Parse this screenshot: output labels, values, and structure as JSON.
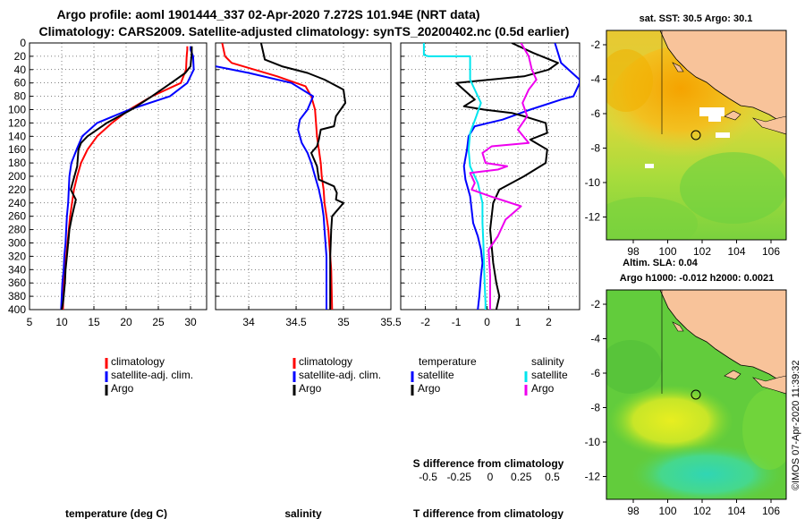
{
  "header": {
    "title_line1": "Argo profile: aoml 1901444_337 02-Apr-2020 7.272S 101.94E (NRT data)",
    "title_line2": "Climatology: CARS2009. Satellite-adjusted climatology: synTS_20200402.nc (0.5d earlier)"
  },
  "colors": {
    "climatology": "#ff0000",
    "satellite": "#0000ff",
    "argo": "#000000",
    "sat_salinity": "#00e5ee",
    "argo_salinity": "#ee00ee"
  },
  "legend_profile": {
    "climatology": "climatology",
    "satellite": "satellite-adj. clim.",
    "argo": "Argo"
  },
  "legend_diff": {
    "temperature": "temperature",
    "salinity": "salinity",
    "satellite": "satellite",
    "argo": "Argo"
  },
  "chart_data": [
    {
      "type": "line",
      "id": "temperature",
      "xlabel": "temperature (deg C)",
      "xlim": [
        5,
        32.5
      ],
      "xticks": [
        5,
        10,
        15,
        20,
        25,
        30
      ],
      "ylim": [
        400,
        0
      ],
      "yticks": [
        0,
        20,
        40,
        60,
        80,
        100,
        120,
        140,
        160,
        180,
        200,
        220,
        240,
        260,
        280,
        300,
        320,
        340,
        360,
        380,
        400
      ],
      "series": [
        {
          "name": "climatology",
          "color": "#ff0000",
          "x": [
            29.5,
            29.5,
            29.4,
            29.3,
            28.5,
            24.0,
            20.5,
            17.8,
            15.5,
            14.0,
            13.0,
            12.4,
            11.9,
            11.6,
            11.3,
            11.1,
            10.9,
            10.7,
            10.5,
            10.3,
            10.2
          ],
          "y": [
            5,
            10,
            20,
            40,
            60,
            80,
            100,
            120,
            140,
            160,
            180,
            200,
            220,
            240,
            260,
            280,
            300,
            320,
            340,
            360,
            400
          ]
        },
        {
          "name": "satellite-adj. clim.",
          "color": "#0000ff",
          "x": [
            30.0,
            30.0,
            30.4,
            30.5,
            29.5,
            26.8,
            20.5,
            15.5,
            13.2,
            12.3,
            11.5,
            11.2,
            11.1,
            11.0,
            10.8,
            10.7,
            10.6,
            10.4,
            10.3,
            10.1,
            9.9
          ],
          "y": [
            5,
            10,
            20,
            40,
            60,
            80,
            100,
            120,
            140,
            160,
            180,
            200,
            220,
            240,
            260,
            280,
            300,
            320,
            340,
            360,
            400
          ]
        },
        {
          "name": "Argo",
          "color": "#000000",
          "x": [
            30.2,
            30.2,
            30.0,
            29.2,
            27.0,
            24.0,
            20.8,
            17.0,
            14.0,
            13.0,
            12.6,
            12.4,
            11.4,
            12.2,
            11.6,
            11.2,
            11.0,
            10.8,
            10.6,
            10.5,
            10.3,
            10.2,
            10.0
          ],
          "y": [
            5,
            15,
            35,
            45,
            60,
            80,
            100,
            120,
            140,
            150,
            160,
            185,
            220,
            235,
            260,
            280,
            300,
            320,
            340,
            360,
            380,
            390,
            400
          ]
        }
      ]
    },
    {
      "type": "line",
      "id": "salinity",
      "xlabel": "salinity",
      "xlim": [
        33.65,
        35.5
      ],
      "xticks": [
        34,
        34.5,
        35,
        35.5
      ],
      "xticklabels": [
        "34",
        "34.5",
        "35",
        "35.5"
      ],
      "ylim": [
        400,
        0
      ],
      "series": [
        {
          "name": "climatology",
          "color": "#ff0000",
          "x": [
            33.72,
            33.75,
            33.82,
            34.3,
            34.6,
            34.66,
            34.7,
            34.71,
            34.72,
            34.74,
            34.76,
            34.77,
            34.79,
            34.8,
            34.82,
            34.84,
            34.85,
            34.86,
            34.87,
            34.88
          ],
          "y": [
            0,
            20,
            30,
            50,
            65,
            80,
            100,
            120,
            140,
            160,
            180,
            200,
            220,
            240,
            260,
            280,
            300,
            320,
            340,
            400
          ]
        },
        {
          "name": "satellite-adj. clim.",
          "color": "#0000ff",
          "x": [
            33.65,
            34.0,
            34.45,
            34.68,
            34.62,
            34.54,
            34.52,
            34.56,
            34.62,
            34.66,
            34.7,
            34.74,
            34.77,
            34.79,
            34.8,
            34.81,
            34.82,
            34.82,
            34.82
          ],
          "y": [
            35,
            45,
            60,
            80,
            100,
            115,
            130,
            150,
            165,
            180,
            200,
            220,
            240,
            260,
            280,
            300,
            320,
            360,
            400
          ]
        },
        {
          "name": "Argo",
          "color": "#000000",
          "x": [
            34.13,
            34.17,
            34.35,
            34.62,
            34.8,
            35.0,
            35.02,
            34.92,
            34.9,
            34.76,
            34.74,
            34.72,
            34.66,
            34.72,
            34.74,
            34.9,
            34.93,
            34.92,
            35.0,
            34.88,
            34.87,
            34.86,
            34.86,
            34.86
          ],
          "y": [
            0,
            25,
            35,
            45,
            55,
            70,
            90,
            110,
            125,
            130,
            145,
            155,
            165,
            185,
            205,
            215,
            225,
            235,
            240,
            260,
            280,
            320,
            360,
            400
          ]
        }
      ]
    },
    {
      "type": "line",
      "id": "difference",
      "xlabel": "T difference from climatology",
      "xlim": [
        -2.8,
        3.0
      ],
      "xticks": [
        -2,
        -1,
        0,
        1,
        2
      ],
      "xticklabels": [
        "-2",
        "-1",
        "0",
        "1",
        "2"
      ],
      "top_axis_label": "S difference from climatology",
      "top_ticks": [
        -0.5,
        -0.25,
        0,
        0.25,
        0.5
      ],
      "top_ticklabels": [
        "-0.5",
        "-0.25",
        "0",
        "0.25",
        "0.5"
      ],
      "ylim": [
        400,
        0
      ],
      "series": [
        {
          "name": "temperature satellite",
          "color": "#0000ff",
          "x": [
            2.2,
            2.4,
            3.0,
            3.0,
            2.8,
            2.4,
            1.4,
            0.5,
            -0.4,
            -0.6,
            -0.65,
            -0.75,
            -0.7,
            -0.55,
            -0.45,
            -0.3,
            -0.2,
            -0.15,
            -0.2,
            -0.25,
            -0.3
          ],
          "y": [
            0,
            30,
            55,
            60,
            80,
            85,
            100,
            115,
            125,
            140,
            160,
            185,
            205,
            230,
            270,
            290,
            310,
            330,
            350,
            380,
            400
          ]
        },
        {
          "name": "temperature Argo",
          "color": "#000000",
          "x": [
            0.8,
            1.5,
            2.3,
            2.0,
            1.2,
            -1.0,
            -0.4,
            -0.75,
            -0.1,
            0.8,
            1.2,
            1.9,
            1.95,
            1.4,
            1.95,
            1.9,
            1.2,
            0.4,
            0.2,
            0.1,
            0.2,
            0.3,
            0.4,
            0.3
          ],
          "y": [
            0,
            15,
            30,
            40,
            50,
            60,
            85,
            95,
            100,
            105,
            110,
            120,
            135,
            145,
            160,
            180,
            200,
            220,
            240,
            280,
            330,
            360,
            380,
            400
          ]
        },
        {
          "name": "salinity satellite",
          "color": "#00e5ee",
          "x": [
            -2.05,
            -2.05,
            -2.05,
            -1.9,
            -0.55,
            -0.55,
            -0.2,
            -0.35,
            -0.55,
            -0.6,
            -0.55,
            -0.3,
            -0.15,
            -0.15,
            -0.12,
            -0.1,
            -0.08,
            -0.05,
            -0.05
          ],
          "y": [
            0,
            15,
            18,
            20,
            20,
            55,
            90,
            110,
            135,
            160,
            185,
            210,
            240,
            270,
            300,
            330,
            360,
            390,
            400
          ]
        },
        {
          "name": "salinity Argo",
          "color": "#ee00ee",
          "x": [
            1.1,
            1.35,
            1.45,
            1.6,
            1.35,
            1.15,
            1.3,
            1.0,
            1.35,
            0.15,
            -0.15,
            -0.05,
            0.65,
            0.35,
            -0.55,
            -0.4,
            -0.5,
            0.1,
            1.1,
            0.6,
            0.35,
            0.05,
            0.1,
            0.1
          ],
          "y": [
            0,
            20,
            40,
            55,
            70,
            90,
            110,
            130,
            150,
            155,
            165,
            180,
            185,
            190,
            195,
            210,
            220,
            230,
            245,
            265,
            290,
            310,
            350,
            400
          ]
        }
      ]
    }
  ],
  "maps": {
    "sst_title": "sat. SST: 30.5 Argo: 30.1",
    "sla_title_line1": "Altim. SLA: 0.04",
    "sla_title_line2": "Argo h1000: -0.012 h2000: 0.0021",
    "x_ticks": [
      "98",
      "100",
      "102",
      "104",
      "106"
    ],
    "y_ticks": [
      "-2",
      "-4",
      "-6",
      "-8",
      "-10",
      "-12"
    ]
  },
  "credit": "©IMOS 07-Apr-2020 11:39:32"
}
